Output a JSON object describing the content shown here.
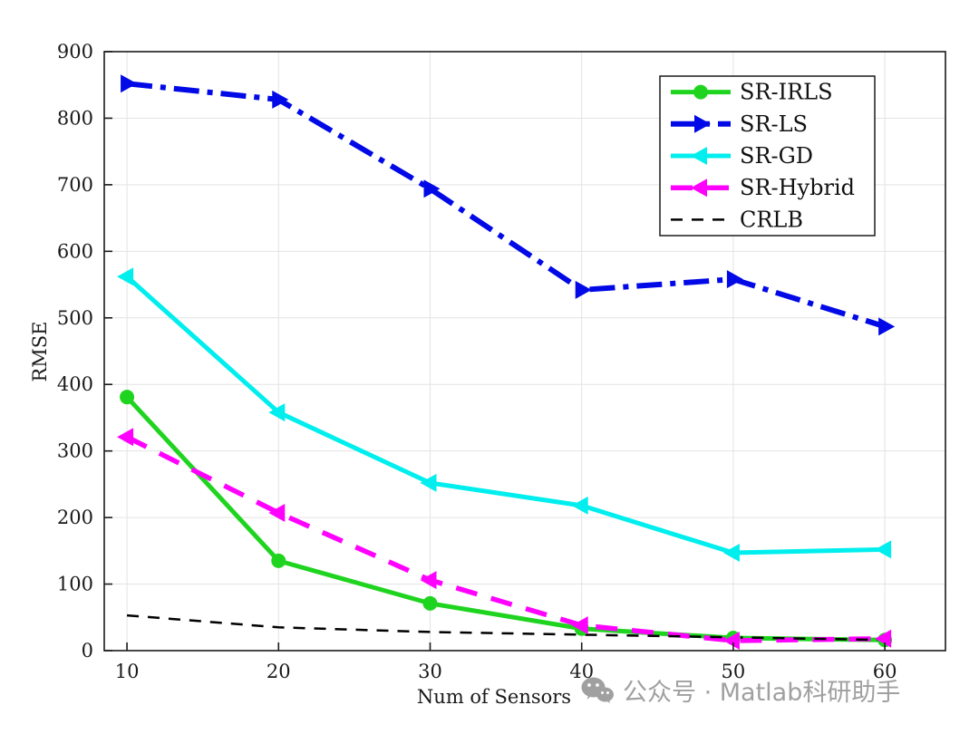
{
  "chart_data": {
    "type": "line",
    "title": "",
    "xlabel": "Num of Sensors",
    "ylabel": "RMSE",
    "x": [
      10,
      20,
      30,
      40,
      50,
      60
    ],
    "xlim": [
      8.5,
      64
    ],
    "ylim": [
      0,
      900
    ],
    "xticks": [
      10,
      20,
      30,
      40,
      50,
      60
    ],
    "yticks": [
      0,
      100,
      200,
      300,
      400,
      500,
      600,
      700,
      800,
      900
    ],
    "grid": true,
    "legend_position": "top-right",
    "series": [
      {
        "name": "SR-IRLS",
        "color": "#1fd41f",
        "style": "solid",
        "marker": "circle",
        "width": 5,
        "values": [
          381,
          135,
          71,
          33,
          19,
          16
        ]
      },
      {
        "name": "SR-LS",
        "color": "#0009e6",
        "style": "dashdot",
        "marker": "triangle-right",
        "width": 6,
        "values": [
          852,
          828,
          694,
          542,
          558,
          487
        ]
      },
      {
        "name": "SR-GD",
        "color": "#00eeee",
        "style": "solid",
        "marker": "triangle-left",
        "width": 5,
        "values": [
          562,
          358,
          252,
          218,
          147,
          152
        ]
      },
      {
        "name": "SR-Hybrid",
        "color": "#ff00ff",
        "style": "dashed",
        "marker": "triangle-left",
        "width": 5.5,
        "values": [
          321,
          207,
          106,
          38,
          15,
          18
        ]
      },
      {
        "name": "CRLB",
        "color": "#000000",
        "style": "dashed",
        "marker": "none",
        "width": 2.5,
        "values": [
          53,
          35,
          28,
          24,
          20,
          16
        ]
      }
    ]
  },
  "watermark": {
    "icon": "wechat-icon",
    "text": "公众号 · Matlab科研助手"
  }
}
